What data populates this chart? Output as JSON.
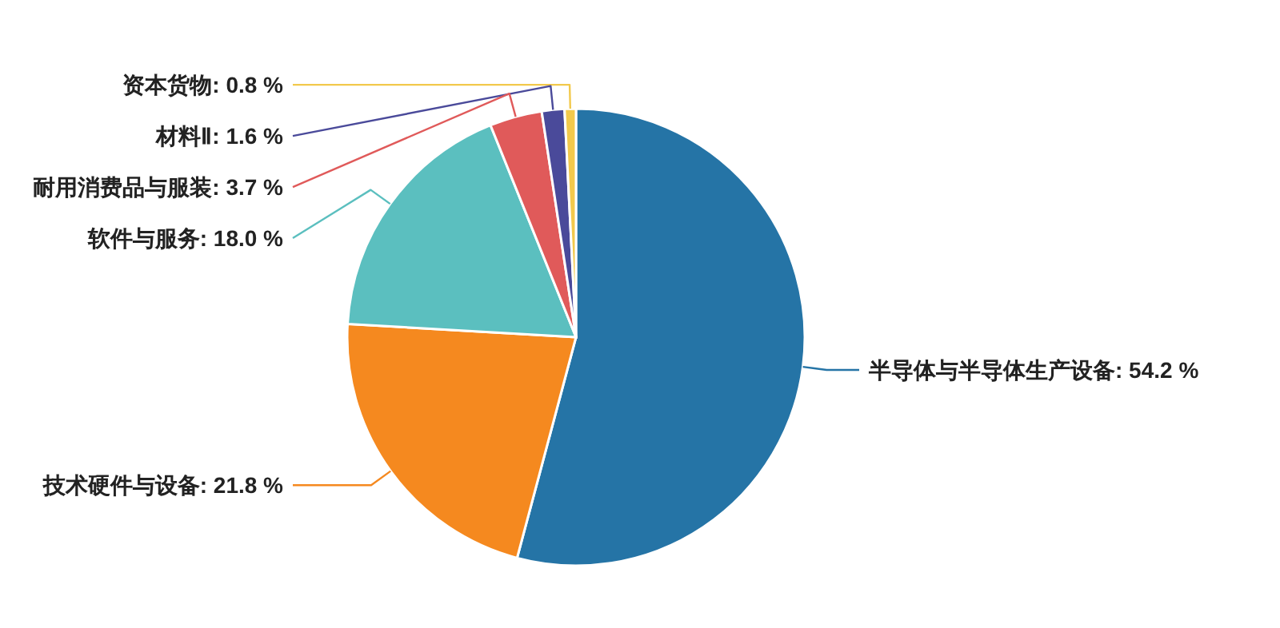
{
  "chart_data": {
    "type": "pie",
    "categories": [
      "半导体与半导体生产设备",
      "技术硬件与设备",
      "软件与服务",
      "耐用消费品与服装",
      "材料Ⅱ",
      "资本货物"
    ],
    "values": [
      54.2,
      21.8,
      18.0,
      3.7,
      1.6,
      0.8
    ],
    "colors": [
      "#2574a6",
      "#f5891f",
      "#5bbfbf",
      "#e05a5a",
      "#4a4a9a",
      "#f2c94c"
    ],
    "value_labels": [
      "54.2 %",
      "21.8 %",
      "18.0 %",
      "3.7 %",
      "1.6 %",
      "0.8 %"
    ]
  }
}
